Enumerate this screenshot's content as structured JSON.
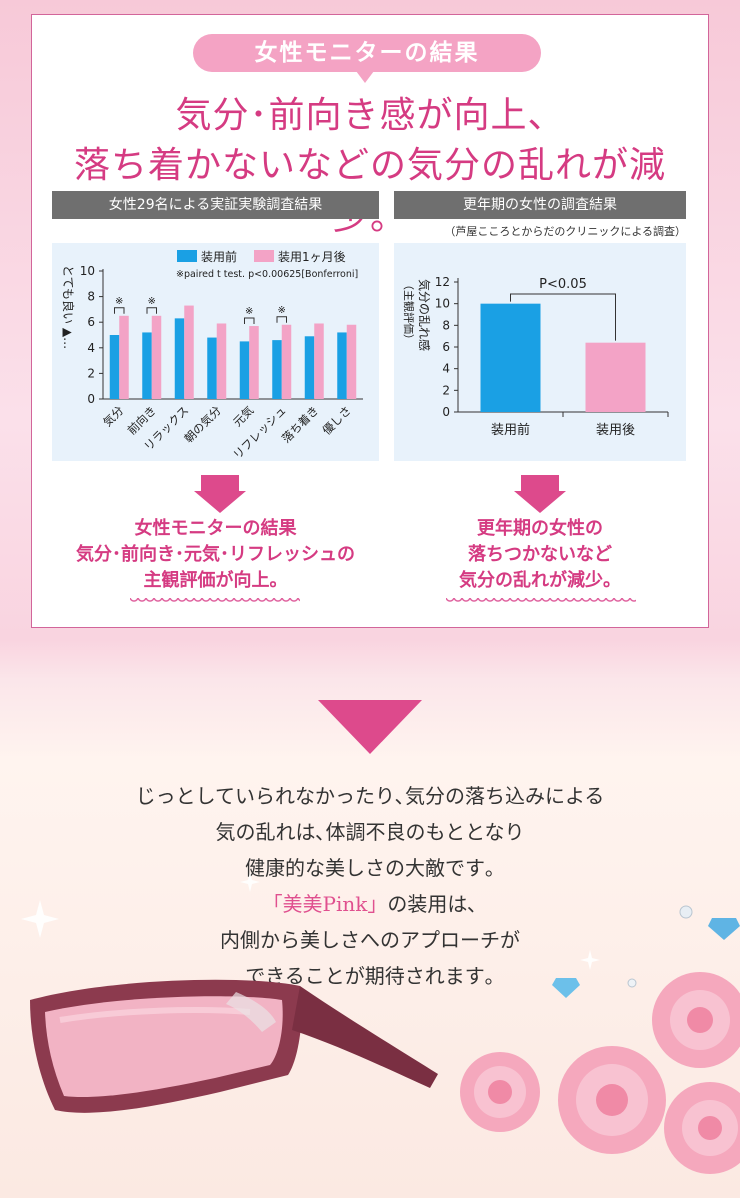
{
  "header": {
    "badge": "女性モニターの結果",
    "headline_line1": "気分･前向き感が向上、",
    "headline_line2": "落ち着かないなどの気分の乱れが減少。"
  },
  "left_panel": {
    "title": "女性29名による実証実験調査結果",
    "stat_note": "※paired t test. p<0.00625[Bonferroni]",
    "result_line1": "女性モニターの結果",
    "result_line2": "気分･前向き･元気･リフレッシュの",
    "result_line3": "主観評価が向上。"
  },
  "right_panel": {
    "title": "更年期の女性の調査結果",
    "subtitle": "（芦屋こころとからだのクリニックによる調査）",
    "result_line1": "更年期の女性の",
    "result_line2": "落ちつかないなど",
    "result_line3": "気分の乱れが減少。"
  },
  "chart_data": [
    {
      "type": "bar",
      "categories": [
        "気分",
        "前向き",
        "リラックス",
        "朝の気分",
        "元気",
        "リフレッシュ",
        "落ち着き",
        "優しさ"
      ],
      "series": [
        {
          "name": "装用前",
          "values": [
            5.0,
            5.2,
            6.3,
            4.8,
            4.5,
            4.6,
            4.9,
            5.2
          ],
          "color": "#1aa0e4"
        },
        {
          "name": "装用1ヶ月後",
          "values": [
            6.5,
            6.5,
            7.3,
            5.9,
            5.7,
            5.8,
            5.9,
            5.8
          ],
          "color": "#f3a3c6"
        }
      ],
      "significant": [
        "※",
        "※",
        "",
        "",
        "※",
        "※",
        "",
        ""
      ],
      "ylabel": "とても良い ▲…",
      "ylim": [
        0,
        10
      ],
      "yticks": [
        "0",
        "2",
        "4",
        "6",
        "8",
        "10"
      ],
      "legend": "top"
    },
    {
      "type": "bar",
      "categories": [
        "装用前",
        "装用後"
      ],
      "values": [
        10.0,
        6.4
      ],
      "colors": [
        "#1aa0e4",
        "#f3a3c6"
      ],
      "ylabel": "気分の乱れ感（主観評価）",
      "ylim": [
        0,
        12
      ],
      "yticks": [
        "0",
        "2",
        "4",
        "6",
        "8",
        "10",
        "12"
      ],
      "annotation": "P<0.05"
    }
  ],
  "bottom": {
    "line1": "じっとしていられなかったり､気分の落ち込みによる",
    "line2": "気の乱れは､体調不良のもととなり",
    "line3": "健康的な美しさの大敵です｡",
    "line4_brand": "「美美Pink」",
    "line4_rest": "の装用は､",
    "line5": "内側から美しさへのアプローチが",
    "line6": "できることが期待されます｡"
  },
  "colors": {
    "accent": "#d53b82",
    "blue": "#1aa0e4",
    "pink": "#f3a3c6",
    "frame": "#8c3a4e"
  }
}
